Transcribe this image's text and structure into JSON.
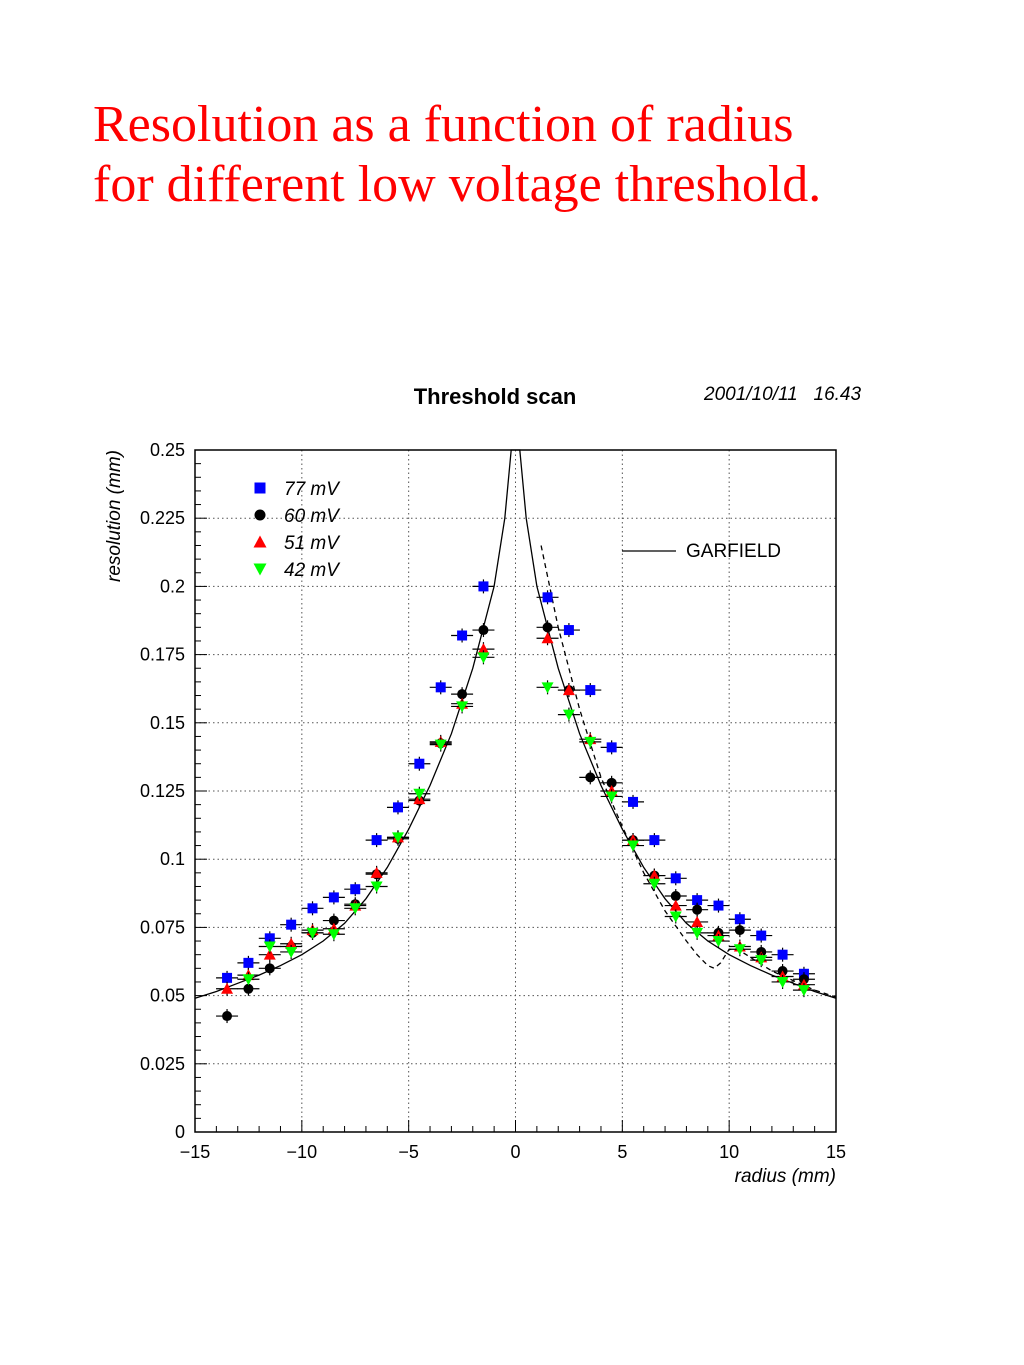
{
  "slide": {
    "title_line1": "Resolution as a function of radius",
    "title_line2": "for different low voltage threshold."
  },
  "chart_data": {
    "type": "scatter",
    "title": "Threshold scan",
    "timestamp": "2001/10/11   16.43",
    "xlabel": "radius (mm)",
    "ylabel": "resolution (mm)",
    "xlim": [
      -15,
      15
    ],
    "ylim": [
      0,
      0.25
    ],
    "xticks": [
      -15,
      -10,
      -5,
      0,
      5,
      10,
      15
    ],
    "xtick_labels": [
      "−15",
      "−10",
      "−5",
      "0",
      "5",
      "10",
      "15"
    ],
    "yticks": [
      0,
      0.025,
      0.05,
      0.075,
      0.1,
      0.125,
      0.15,
      0.175,
      0.2,
      0.225,
      0.25
    ],
    "ytick_labels": [
      "0",
      "0.025",
      "0.05",
      "0.075",
      "0.1",
      "0.125",
      "0.15",
      "0.175",
      "0.2",
      "0.225",
      "0.25"
    ],
    "grid": true,
    "legend_position": "top-left",
    "series": [
      {
        "name": "77 mV",
        "marker": "square",
        "color": "#0000ff",
        "points": [
          [
            -13.5,
            0.0565
          ],
          [
            -12.5,
            0.062
          ],
          [
            -11.5,
            0.071
          ],
          [
            -10.5,
            0.076
          ],
          [
            -9.5,
            0.082
          ],
          [
            -8.5,
            0.086
          ],
          [
            -7.5,
            0.089
          ],
          [
            -6.5,
            0.107
          ],
          [
            -5.5,
            0.119
          ],
          [
            -4.5,
            0.135
          ],
          [
            -3.5,
            0.163
          ],
          [
            -2.5,
            0.182
          ],
          [
            -1.5,
            0.2
          ],
          [
            1.5,
            0.196
          ],
          [
            2.5,
            0.184
          ],
          [
            3.5,
            0.162
          ],
          [
            4.5,
            0.141
          ],
          [
            5.5,
            0.121
          ],
          [
            6.5,
            0.107
          ],
          [
            7.5,
            0.093
          ],
          [
            8.5,
            0.085
          ],
          [
            9.5,
            0.083
          ],
          [
            10.5,
            0.078
          ],
          [
            11.5,
            0.072
          ],
          [
            12.5,
            0.065
          ],
          [
            13.5,
            0.058
          ]
        ]
      },
      {
        "name": "60 mV",
        "marker": "circle",
        "color": "#000000",
        "points": [
          [
            -13.5,
            0.0425
          ],
          [
            -12.5,
            0.0525
          ],
          [
            -11.5,
            0.06
          ],
          [
            -10.5,
            0.068
          ],
          [
            -9.5,
            0.073
          ],
          [
            -8.5,
            0.0775
          ],
          [
            -7.5,
            0.0835
          ],
          [
            -6.5,
            0.0945
          ],
          [
            -5.5,
            0.1075
          ],
          [
            -4.5,
            0.1215
          ],
          [
            -3.5,
            0.1425
          ],
          [
            -2.5,
            0.1605
          ],
          [
            -1.5,
            0.184
          ],
          [
            1.5,
            0.185
          ],
          [
            2.5,
            0.162
          ],
          [
            3.5,
            0.13
          ],
          [
            4.5,
            0.128
          ],
          [
            5.5,
            0.107
          ],
          [
            6.5,
            0.094
          ],
          [
            7.5,
            0.0865
          ],
          [
            8.5,
            0.0815
          ],
          [
            9.5,
            0.073
          ],
          [
            10.5,
            0.074
          ],
          [
            11.5,
            0.066
          ],
          [
            12.5,
            0.059
          ],
          [
            13.5,
            0.056
          ]
        ]
      },
      {
        "name": "51 mV",
        "marker": "triangle-up",
        "color": "#ff0000",
        "points": [
          [
            -13.5,
            0.0525
          ],
          [
            -12.5,
            0.0575
          ],
          [
            -11.5,
            0.065
          ],
          [
            -10.5,
            0.069
          ],
          [
            -9.5,
            0.074
          ],
          [
            -8.5,
            0.0745
          ],
          [
            -7.5,
            0.083
          ],
          [
            -6.5,
            0.095
          ],
          [
            -5.5,
            0.108
          ],
          [
            -4.5,
            0.122
          ],
          [
            -3.5,
            0.143
          ],
          [
            -2.5,
            0.157
          ],
          [
            -1.5,
            0.177
          ],
          [
            1.5,
            0.181
          ],
          [
            2.5,
            0.162
          ],
          [
            3.5,
            0.144
          ],
          [
            4.5,
            0.125
          ],
          [
            5.5,
            0.107
          ],
          [
            6.5,
            0.094
          ],
          [
            7.5,
            0.083
          ],
          [
            8.5,
            0.077
          ],
          [
            9.5,
            0.072
          ],
          [
            10.5,
            0.068
          ],
          [
            11.5,
            0.064
          ],
          [
            12.5,
            0.057
          ],
          [
            13.5,
            0.054
          ]
        ]
      },
      {
        "name": "42 mV",
        "marker": "triangle-down",
        "color": "#00ff00",
        "points": [
          [
            -12.5,
            0.056
          ],
          [
            -11.5,
            0.068
          ],
          [
            -10.5,
            0.066
          ],
          [
            -9.5,
            0.073
          ],
          [
            -8.5,
            0.0725
          ],
          [
            -7.5,
            0.082
          ],
          [
            -6.5,
            0.09
          ],
          [
            -5.5,
            0.108
          ],
          [
            -4.5,
            0.124
          ],
          [
            -3.5,
            0.142
          ],
          [
            -2.5,
            0.156
          ],
          [
            -1.5,
            0.174
          ],
          [
            1.5,
            0.163
          ],
          [
            2.5,
            0.153
          ],
          [
            3.5,
            0.143
          ],
          [
            4.5,
            0.123
          ],
          [
            5.5,
            0.105
          ],
          [
            6.5,
            0.091
          ],
          [
            7.5,
            0.079
          ],
          [
            8.5,
            0.073
          ],
          [
            9.5,
            0.07
          ],
          [
            10.5,
            0.067
          ],
          [
            11.5,
            0.063
          ],
          [
            12.5,
            0.055
          ],
          [
            13.5,
            0.052
          ]
        ]
      }
    ],
    "curves": [
      {
        "name": "GARFIELD",
        "style": "solid",
        "color": "#000000",
        "points": [
          [
            -15,
            0.049
          ],
          [
            -14,
            0.0515
          ],
          [
            -13,
            0.0545
          ],
          [
            -12,
            0.0575
          ],
          [
            -11,
            0.061
          ],
          [
            -10,
            0.065
          ],
          [
            -9,
            0.07
          ],
          [
            -8,
            0.0765
          ],
          [
            -7,
            0.0855
          ],
          [
            -6,
            0.097
          ],
          [
            -5,
            0.111
          ],
          [
            -4,
            0.127
          ],
          [
            -3,
            0.146
          ],
          [
            -2,
            0.17
          ],
          [
            -1,
            0.2
          ],
          [
            -0.5,
            0.225
          ],
          [
            -0.2,
            0.25
          ],
          [
            0.2,
            0.25
          ],
          [
            0.5,
            0.225
          ],
          [
            1,
            0.2
          ],
          [
            2,
            0.17
          ],
          [
            3,
            0.146
          ],
          [
            4,
            0.127
          ],
          [
            5,
            0.111
          ],
          [
            6,
            0.097
          ],
          [
            7,
            0.0855
          ],
          [
            8,
            0.0765
          ],
          [
            9,
            0.07
          ],
          [
            10,
            0.065
          ],
          [
            11,
            0.061
          ],
          [
            12,
            0.0575
          ],
          [
            13,
            0.0545
          ],
          [
            14,
            0.0515
          ],
          [
            15,
            0.049
          ]
        ]
      },
      {
        "name": "",
        "style": "dashed",
        "color": "#000000",
        "points": [
          [
            1.2,
            0.215
          ],
          [
            2,
            0.185
          ],
          [
            3,
            0.155
          ],
          [
            4,
            0.13
          ],
          [
            5,
            0.112
          ],
          [
            6,
            0.095
          ],
          [
            7,
            0.081
          ],
          [
            8,
            0.07
          ],
          [
            8.5,
            0.065
          ],
          [
            9,
            0.061
          ],
          [
            9.3,
            0.06
          ],
          [
            9.6,
            0.062
          ],
          [
            10,
            0.067
          ],
          [
            10.5,
            0.0665
          ],
          [
            11,
            0.064
          ],
          [
            12,
            0.059
          ],
          [
            13,
            0.0555
          ],
          [
            14,
            0.052
          ],
          [
            15,
            0.0495
          ]
        ]
      }
    ],
    "legend_curve_label": "GARFIELD"
  }
}
